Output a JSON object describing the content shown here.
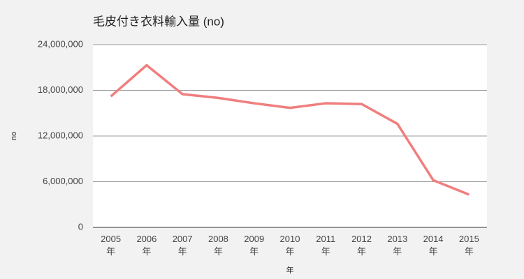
{
  "chart_data": {
    "type": "line",
    "title": "毛皮付き衣料輸入量 (no)",
    "x_label": "年",
    "y_label": "no",
    "categories": [
      "2005年",
      "2006年",
      "2007年",
      "2008年",
      "2009年",
      "2010年",
      "2011年",
      "2012年",
      "2013年",
      "2014年",
      "2015年"
    ],
    "series": [
      {
        "name": "no",
        "color": "#f07e7e",
        "values": [
          17200000,
          21300000,
          17500000,
          17000000,
          16300000,
          15700000,
          16300000,
          16200000,
          13600000,
          6200000,
          4300000
        ]
      }
    ],
    "ylim": [
      0,
      24000000
    ],
    "yticks": [
      {
        "value": 0,
        "label": "0"
      },
      {
        "value": 6000000,
        "label": "6,000,000"
      },
      {
        "value": 12000000,
        "label": "12,000,000"
      },
      {
        "value": 18000000,
        "label": "18,000,000"
      },
      {
        "value": 24000000,
        "label": "24,000,000"
      }
    ],
    "grid": true,
    "legend": false
  }
}
